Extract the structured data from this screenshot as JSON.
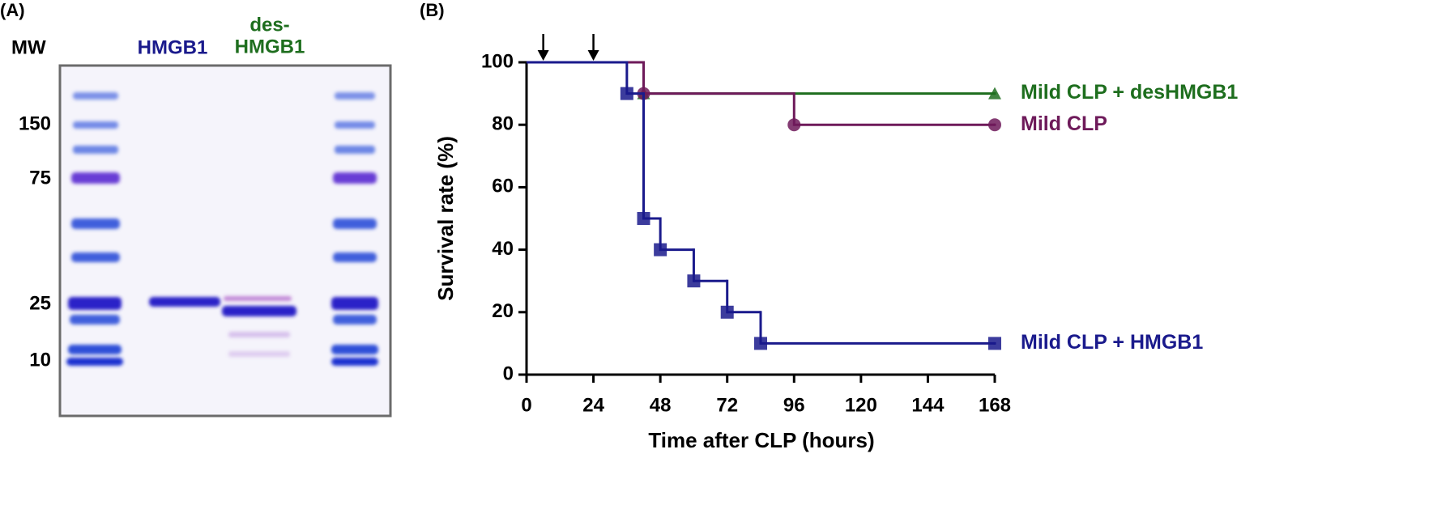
{
  "panel_a": {
    "label": "(A)",
    "mw_label": "MW",
    "lanes": [
      {
        "text": "HMGB1",
        "color": "#1a1a8c"
      },
      {
        "lines": [
          "des-",
          "HMGB1"
        ],
        "color": "#1e6e1e"
      }
    ],
    "markers": [
      "150",
      "75",
      "25",
      "10"
    ]
  },
  "chart_data": {
    "type": "survival",
    "panel_label": "(B)",
    "xlabel": "Time after CLP (hours)",
    "ylabel": "Survival rate (%)",
    "xlim": [
      0,
      168
    ],
    "xticks": [
      0,
      24,
      48,
      72,
      96,
      120,
      144,
      168
    ],
    "ylim": [
      0,
      100
    ],
    "yticks": [
      0,
      20,
      40,
      60,
      80,
      100
    ],
    "arrows": [
      6,
      24
    ],
    "series": [
      {
        "name": "Mild CLP + desHMGB1",
        "color": "#1e6e1e",
        "marker": "triangle",
        "x": [
          0,
          42,
          168
        ],
        "values": [
          100,
          90,
          90
        ]
      },
      {
        "name": "Mild CLP",
        "color": "#6e1a5a",
        "marker": "circle",
        "x": [
          0,
          42,
          96,
          168
        ],
        "values": [
          100,
          90,
          80,
          80
        ]
      },
      {
        "name": "Mild CLP + HMGB1",
        "color": "#1a1a8c",
        "marker": "square",
        "x": [
          0,
          36,
          42,
          48,
          60,
          72,
          84,
          168
        ],
        "values": [
          100,
          90,
          50,
          40,
          30,
          20,
          10,
          10
        ]
      }
    ]
  }
}
